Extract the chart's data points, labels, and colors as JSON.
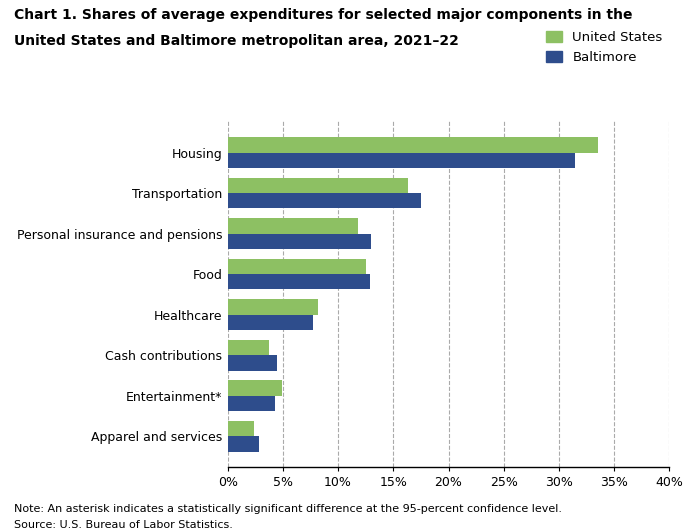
{
  "title_line1": "Chart 1. Shares of average expenditures for selected major components in the",
  "title_line2": "United States and Baltimore metropolitan area, 2021–22",
  "categories": [
    "Housing",
    "Transportation",
    "Personal insurance and pensions",
    "Food",
    "Healthcare",
    "Cash contributions",
    "Entertainment*",
    "Apparel and services"
  ],
  "us_values": [
    33.5,
    16.3,
    11.8,
    12.5,
    8.2,
    3.7,
    4.9,
    2.4
  ],
  "baltimore_values": [
    31.5,
    17.5,
    13.0,
    12.9,
    7.7,
    4.5,
    4.3,
    2.8
  ],
  "us_color": "#8DC063",
  "baltimore_color": "#2E4D8C",
  "us_label": "United States",
  "baltimore_label": "Baltimore",
  "xlim": [
    0,
    40
  ],
  "xtick_vals": [
    0,
    5,
    10,
    15,
    20,
    25,
    30,
    35,
    40
  ],
  "xtick_labels": [
    "0%",
    "5%",
    "10%",
    "15%",
    "20%",
    "25%",
    "30%",
    "35%",
    "40%"
  ],
  "note": "Note: An asterisk indicates a statistically significant difference at the 95-percent confidence level.",
  "source": "Source: U.S. Bureau of Labor Statistics.",
  "bar_height": 0.38,
  "background_color": "#ffffff",
  "grid_color": "#aaaaaa"
}
